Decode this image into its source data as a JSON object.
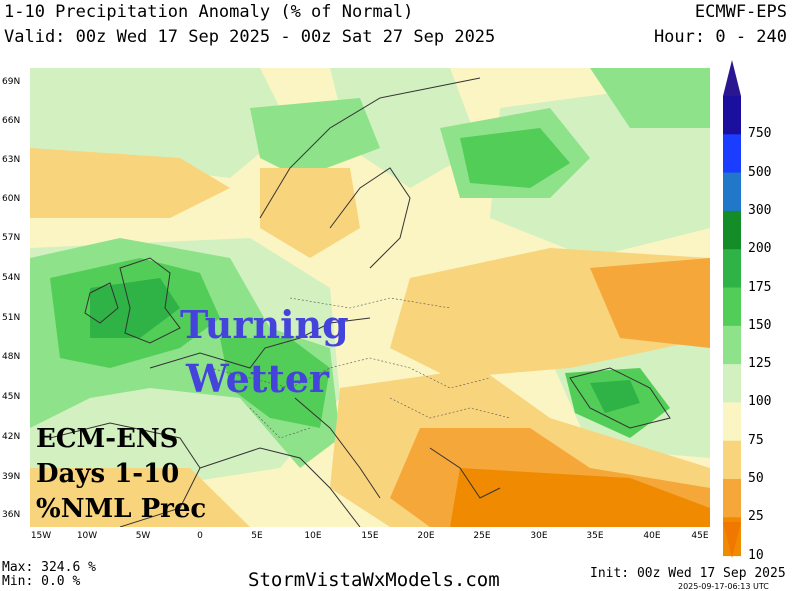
{
  "header": {
    "title": "1-10 Precipitation Anomaly (% of Normal)",
    "valid": "Valid: 00z Wed 17 Sep 2025 - 00z Sat 27 Sep 2025",
    "model": "ECMWF-EPS",
    "hour": "Hour: 0 - 240"
  },
  "map": {
    "lat_labels": [
      "69N",
      "66N",
      "63N",
      "60N",
      "57N",
      "54N",
      "51N",
      "48N",
      "45N",
      "42N",
      "39N",
      "36N"
    ],
    "lon_labels": [
      "15W",
      "10W",
      "5W",
      "0",
      "5E",
      "10E",
      "15E",
      "20E",
      "25E",
      "30E",
      "35E",
      "40E",
      "45E"
    ],
    "lat_range": [
      35,
      70
    ],
    "lon_range": [
      -15,
      45
    ]
  },
  "overlay": {
    "headline_1": "Turning",
    "headline_2": "Wetter",
    "note_1": "ECM-ENS",
    "note_2": "Days 1-10",
    "note_3": "%NML Prec"
  },
  "legend": {
    "labels": [
      "750",
      "500",
      "300",
      "200",
      "175",
      "150",
      "125",
      "100",
      "75",
      "50",
      "25",
      "10"
    ],
    "colors": [
      "#1b0f9e",
      "#1a3dff",
      "#2278c8",
      "#148c28",
      "#2fb246",
      "#52cd57",
      "#8ee28a",
      "#d2f0c0",
      "#fbf5c4",
      "#f8d47c",
      "#f5a73a",
      "#f08a00"
    ],
    "cap_top_color": "#2a1690",
    "cap_bottom_color": "#f07800"
  },
  "footer": {
    "max": "Max: 324.6 %",
    "min": "Min: 0.0 %",
    "site": "StormVistaWxModels.com",
    "init": "Init: 00z Wed 17 Sep 2025",
    "stamp": "2025-09-17-06:13 UTC"
  }
}
